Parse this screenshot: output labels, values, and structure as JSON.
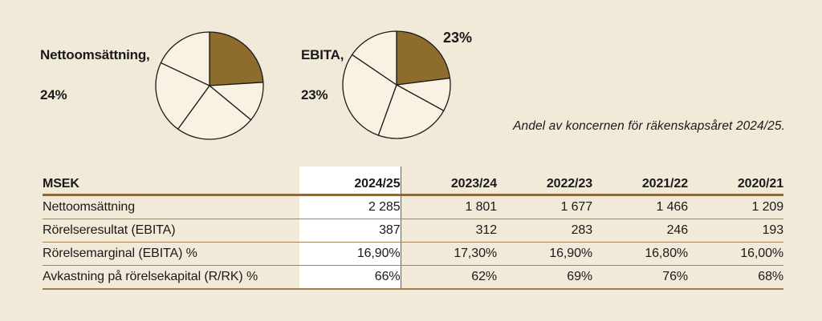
{
  "page": {
    "background": "#f2ead9",
    "text_color": "#1a1a1a",
    "accent_brown": "#8d6c2d",
    "pie_fill": "#f8f2e3",
    "rule_dark": "#8a6a3a",
    "rule_light": "#a3835c",
    "highlight_bg": "#ffffff"
  },
  "caption": "Andel av koncernen för räkenskapsåret 2024/25.",
  "chart_data": [
    {
      "type": "pie",
      "title_line1": "Nettoomsättning,",
      "title_line2": "24%",
      "highlight_label": "Nettoomsättning",
      "highlight_value_pct": 24,
      "slices_pct": [
        24,
        12,
        24,
        22,
        18
      ],
      "slice_colors": [
        "#8d6c2d",
        "#f8f2e3",
        "#f8f2e3",
        "#f8f2e3",
        "#f8f2e3"
      ],
      "legend_position": "left-of-chart"
    },
    {
      "type": "pie",
      "title_line1": "EBITA,",
      "title_line2": "23%",
      "callout_label": "23%",
      "highlight_label": "EBITA",
      "highlight_value_pct": 23,
      "slices_pct": [
        23,
        10,
        22.5,
        29,
        15.5
      ],
      "slice_colors": [
        "#8d6c2d",
        "#f8f2e3",
        "#f8f2e3",
        "#f8f2e3",
        "#f8f2e3"
      ],
      "legend_position": "left-of-chart"
    },
    {
      "type": "table",
      "unit_header": "MSEK",
      "columns": [
        "2024/25",
        "2023/24",
        "2022/23",
        "2021/22",
        "2020/21"
      ],
      "highlighted_column": "2024/25",
      "rows": [
        {
          "label": "Nettoomsättning",
          "values": [
            "2 285",
            "1 801",
            "1 677",
            "1 466",
            "1 209"
          ]
        },
        {
          "label": "Rörelseresultat (EBITA)",
          "values": [
            "387",
            "312",
            "283",
            "246",
            "193"
          ]
        },
        {
          "label": "Rörelsemarginal (EBITA) %",
          "values": [
            "16,90%",
            "17,30%",
            "16,90%",
            "16,80%",
            "16,00%"
          ]
        },
        {
          "label": "Avkastning på rörelsekapital (R/RK) %",
          "values": [
            "66%",
            "62%",
            "69%",
            "76%",
            "68%"
          ]
        }
      ]
    }
  ]
}
